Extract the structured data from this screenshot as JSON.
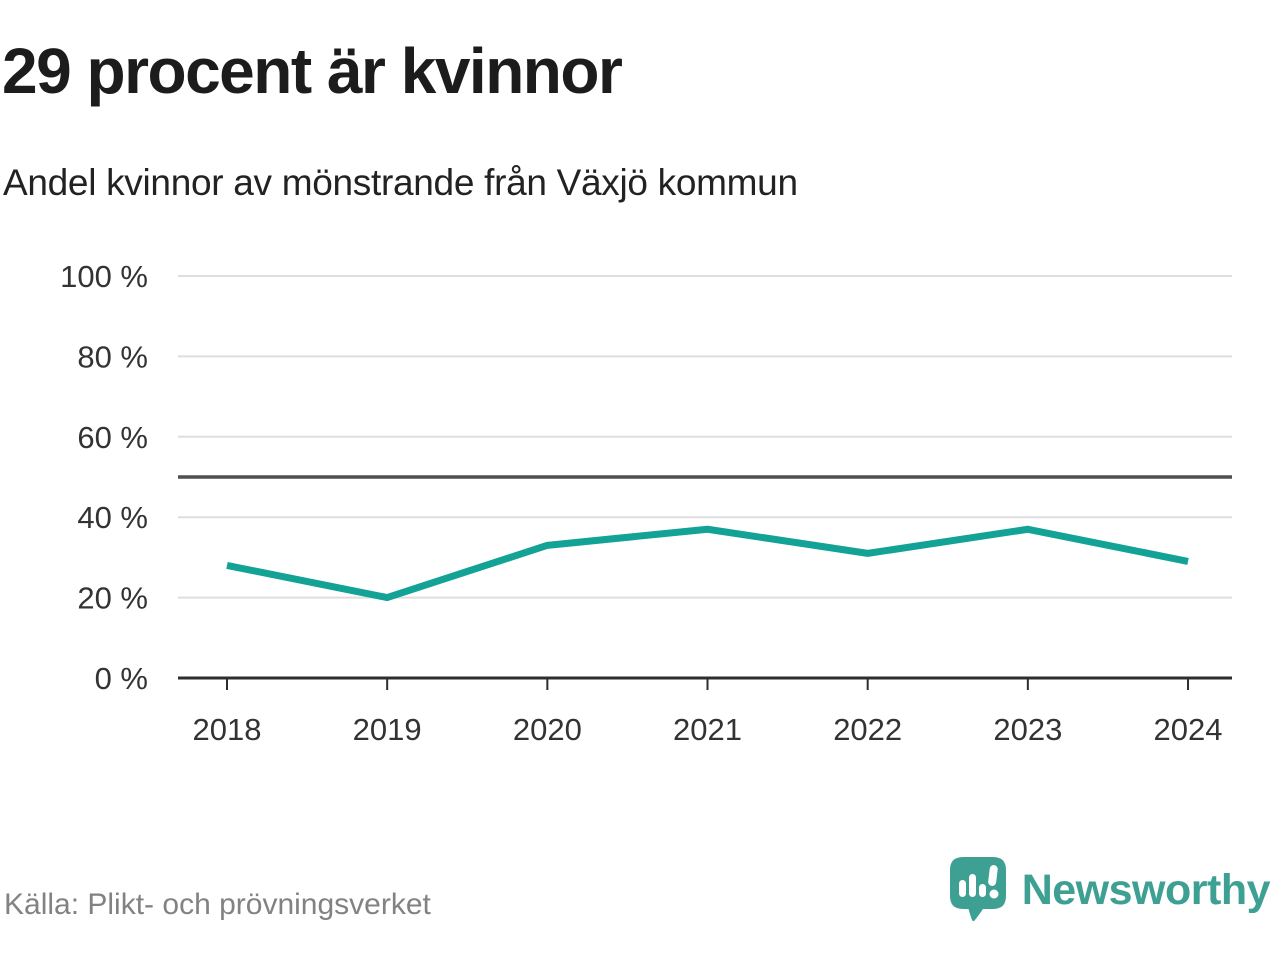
{
  "header": {
    "title": "29 procent är kvinnor",
    "subtitle": "Andel kvinnor av mönstrande från Växjö kommun"
  },
  "footer": {
    "source": "Källa: Plikt- och prövningsverket",
    "logo_text": "Newsworthy"
  },
  "icons": {
    "logo_icon": "newsworthy-speech-bubble-with-bar-chart-and-exclamation"
  },
  "chart_data": {
    "type": "line",
    "title": "29 procent är kvinnor",
    "subtitle": "Andel kvinnor av mönstrande från Växjö kommun",
    "categories": [
      2018,
      2019,
      2020,
      2021,
      2022,
      2023,
      2024
    ],
    "xticks": [
      "2018",
      "2019",
      "2020",
      "2021",
      "2022",
      "2023",
      "2024"
    ],
    "series": [
      {
        "name": "Andel kvinnor av mönstrande",
        "values": [
          28,
          20,
          33,
          37,
          31,
          37,
          29
        ],
        "unit": "%"
      }
    ],
    "ylim": [
      0,
      100
    ],
    "yticks": [
      {
        "value": 0,
        "label": "0 %"
      },
      {
        "value": 20,
        "label": "20 %"
      },
      {
        "value": 40,
        "label": "40 %"
      },
      {
        "value": 60,
        "label": "60 %"
      },
      {
        "value": 80,
        "label": "80 %"
      },
      {
        "value": 100,
        "label": "100 %"
      }
    ],
    "reference_line": 50,
    "grid": "horizontal",
    "legend": "none",
    "colors": {
      "line": "#12a296",
      "grid": "#dedede",
      "axis": "#2e2e2e",
      "reference": "#4f4f4f",
      "label": "#333333",
      "source": "#828282",
      "logo": "#3da093"
    }
  }
}
